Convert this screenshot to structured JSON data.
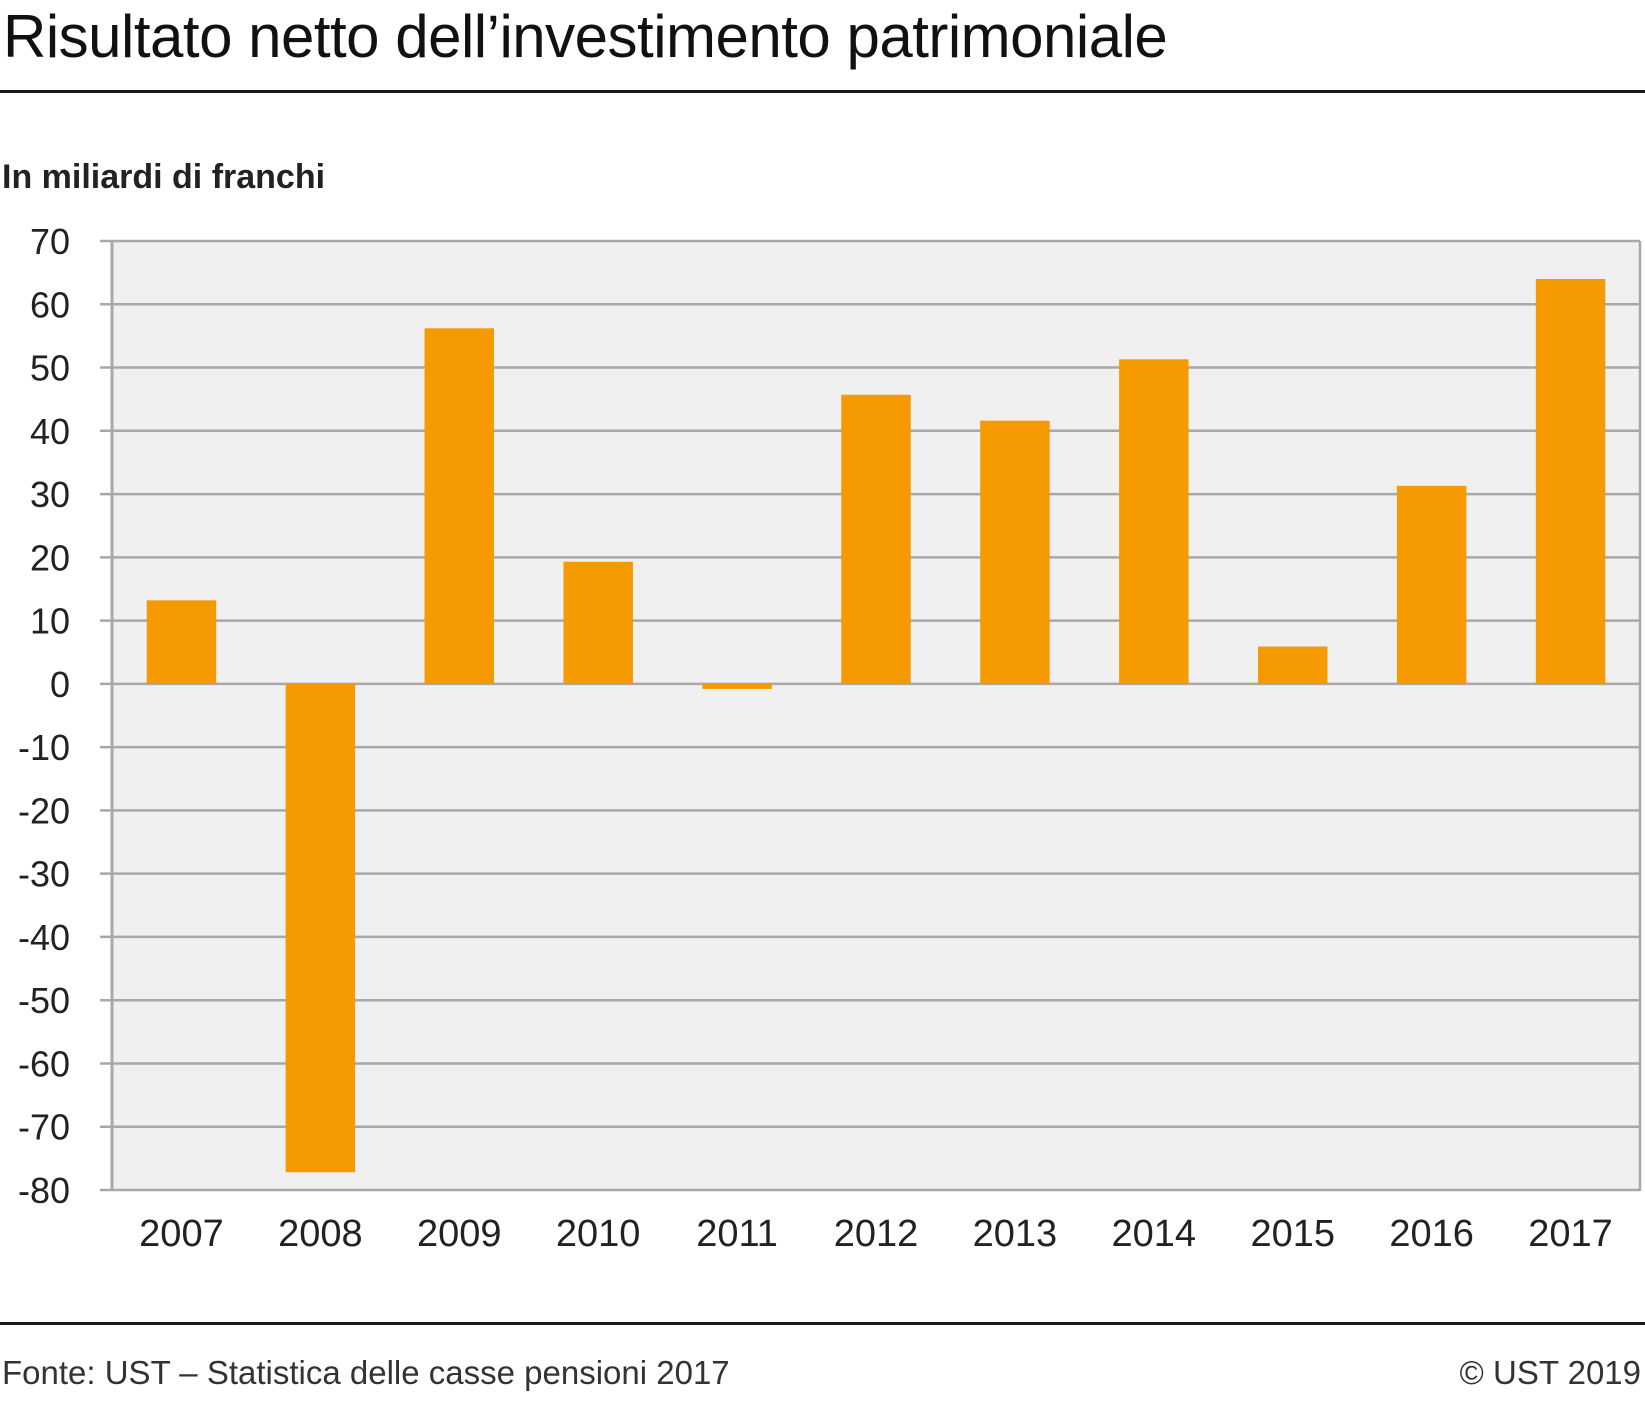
{
  "header": {
    "title": "Risultato netto dell’investimento patrimoniale"
  },
  "footer": {
    "source": "Fonte: UST – Statistica delle casse pensioni 2017",
    "copyright": "© UST 2019"
  },
  "colors": {
    "bar": "#F59A00",
    "plot_background": "#F0F0F0",
    "grid": "#A8A8A8"
  },
  "chart_data": {
    "type": "bar",
    "title": "Risultato netto dell’investimento patrimoniale",
    "ylabel": "In miliardi di franchi",
    "xlabel": "",
    "categories": [
      "2007",
      "2008",
      "2009",
      "2010",
      "2011",
      "2012",
      "2013",
      "2014",
      "2015",
      "2016",
      "2017"
    ],
    "values": [
      13.2,
      -77.2,
      56.2,
      19.3,
      -0.8,
      45.7,
      41.6,
      51.3,
      5.9,
      31.3,
      64.0
    ],
    "ylim": [
      -80,
      70
    ],
    "yticks": [
      "70",
      "60",
      "50",
      "40",
      "30",
      "20",
      "10",
      "0",
      "-10",
      "-20",
      "-30",
      "-40",
      "-50",
      "-60",
      "-70",
      "-80"
    ],
    "grid": true
  }
}
